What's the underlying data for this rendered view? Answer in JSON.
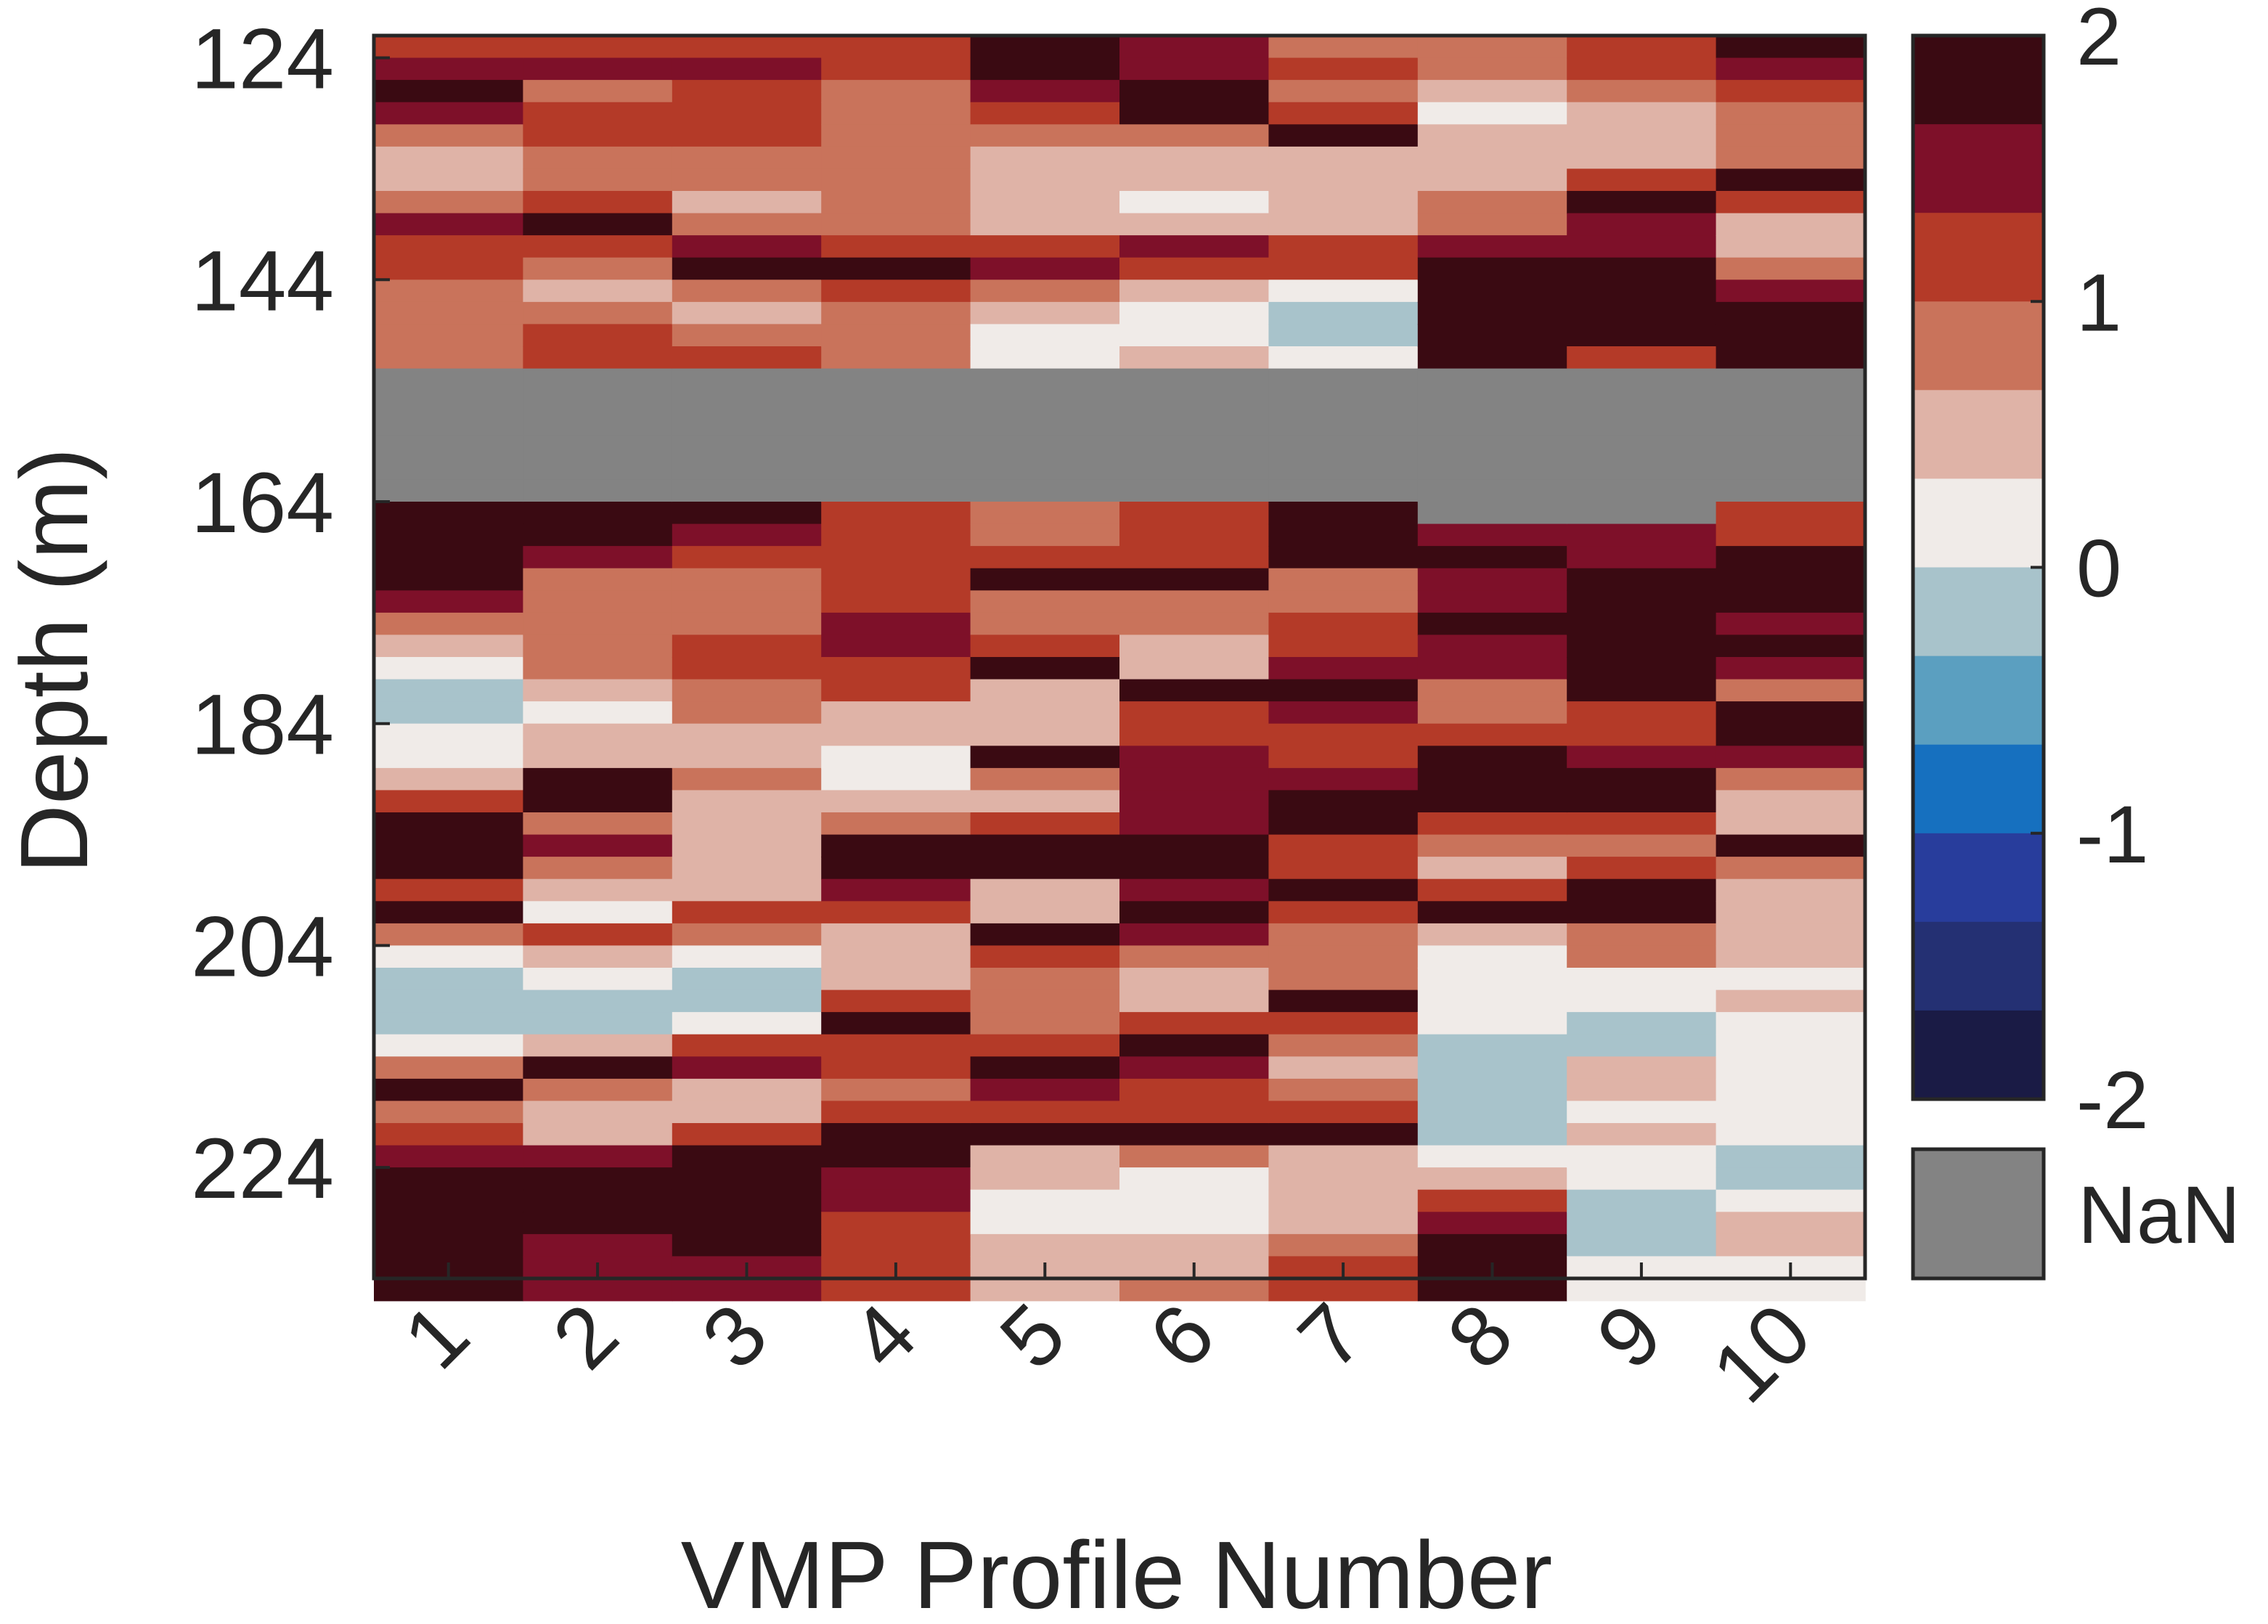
{
  "chart_data": {
    "type": "heatmap",
    "title": "",
    "xlabel": "VMP Profile Number",
    "ylabel": "Depth (m)",
    "x_categories": [
      "1",
      "2",
      "3",
      "4",
      "5",
      "6",
      "7",
      "8",
      "9",
      "10"
    ],
    "y_ticks": [
      124,
      144,
      164,
      184,
      204,
      224
    ],
    "y_range": [
      122,
      234
    ],
    "y_step": 2,
    "depth_start": 122,
    "color_range": [
      -2,
      2
    ],
    "colorbar": {
      "ticks": [
        2,
        1,
        0,
        -1,
        -2
      ],
      "tick_labels": [
        "2",
        "1",
        "0",
        "-1",
        "-2"
      ],
      "nan_label": "NaN",
      "levels": [
        {
          "min": 1.6667,
          "max": 2.0,
          "color": "#3a0a12"
        },
        {
          "min": 1.3333,
          "max": 1.6667,
          "color": "#7e1029"
        },
        {
          "min": 1.0,
          "max": 1.3333,
          "color": "#b43a28"
        },
        {
          "min": 0.6667,
          "max": 1.0,
          "color": "#c9735b"
        },
        {
          "min": 0.3333,
          "max": 0.6667,
          "color": "#dfb3a7"
        },
        {
          "min": 0.0,
          "max": 0.3333,
          "color": "#f0ebe8"
        },
        {
          "min": -0.3333,
          "max": 0.0,
          "color": "#a8c3cb"
        },
        {
          "min": -0.6667,
          "max": -0.3333,
          "color": "#5b9fc0"
        },
        {
          "min": -1.0,
          "max": -0.6667,
          "color": "#1670bf"
        },
        {
          "min": -1.3333,
          "max": -1.0,
          "color": "#283d9c"
        },
        {
          "min": -1.6667,
          "max": -1.3333,
          "color": "#243073"
        },
        {
          "min": -2.0,
          "max": -1.6667,
          "color": "#1a1b45"
        }
      ],
      "nan_color": "#838383"
    },
    "series": [
      {
        "values": [
          1.2,
          1.5,
          1.8,
          1.5,
          0.8,
          0.5,
          0.5,
          0.8,
          1.5,
          1.2,
          1.0,
          0.8,
          0.8,
          0.8,
          0.8,
          null,
          null,
          null,
          null,
          null,
          null,
          1.8,
          1.8,
          1.8,
          1.8,
          1.5,
          0.8,
          0.5,
          0.2,
          -0.2,
          -0.2,
          0.2,
          0.2,
          0.5,
          1.2,
          1.8,
          1.8,
          1.8,
          1.2,
          1.8,
          0.8,
          0.2,
          -0.2,
          -0.2,
          -0.2,
          0.2,
          0.8,
          1.8,
          0.8,
          1.2,
          1.5,
          1.8,
          1.8,
          1.8,
          1.8,
          1.8,
          1.8
        ]
      },
      {
        "values": [
          1.2,
          1.5,
          0.8,
          1.2,
          1.2,
          0.8,
          0.8,
          1.2,
          1.8,
          1.2,
          0.8,
          0.5,
          0.8,
          1.2,
          1.2,
          null,
          null,
          null,
          null,
          null,
          null,
          1.8,
          1.8,
          1.5,
          0.8,
          0.8,
          0.8,
          0.8,
          0.8,
          0.5,
          0.2,
          0.5,
          0.5,
          1.8,
          1.8,
          0.8,
          1.5,
          0.8,
          0.5,
          0.2,
          1.2,
          0.5,
          0.2,
          -0.2,
          -0.2,
          0.5,
          1.8,
          0.8,
          0.5,
          0.5,
          1.5,
          1.8,
          1.8,
          1.8,
          1.5,
          1.5,
          1.5
        ]
      },
      {
        "values": [
          1.2,
          1.5,
          1.2,
          1.2,
          1.2,
          0.8,
          0.8,
          0.5,
          0.8,
          1.5,
          1.8,
          0.8,
          0.5,
          0.8,
          1.2,
          null,
          null,
          null,
          null,
          null,
          null,
          1.8,
          1.5,
          1.2,
          0.8,
          0.8,
          0.8,
          1.2,
          1.2,
          0.8,
          0.8,
          0.5,
          0.5,
          0.8,
          0.5,
          0.5,
          0.5,
          0.5,
          0.5,
          1.2,
          0.8,
          0.2,
          -0.2,
          -0.2,
          0.2,
          1.2,
          1.5,
          0.5,
          0.5,
          1.2,
          1.8,
          1.8,
          1.8,
          1.8,
          1.8,
          1.5,
          1.5
        ]
      },
      {
        "values": [
          1.2,
          1.2,
          0.8,
          0.8,
          0.8,
          0.8,
          0.8,
          0.8,
          0.8,
          1.2,
          1.8,
          1.2,
          0.8,
          0.8,
          0.8,
          null,
          null,
          null,
          null,
          null,
          null,
          1.2,
          1.2,
          1.2,
          1.2,
          1.2,
          1.5,
          1.5,
          1.2,
          1.2,
          0.5,
          0.5,
          0.2,
          0.2,
          0.5,
          0.8,
          1.8,
          1.8,
          1.5,
          1.2,
          0.5,
          0.5,
          0.5,
          1.2,
          1.8,
          1.2,
          1.2,
          0.8,
          1.2,
          1.8,
          1.8,
          1.5,
          1.5,
          1.2,
          1.2,
          1.2,
          1.2
        ]
      },
      {
        "values": [
          1.8,
          1.8,
          1.5,
          1.2,
          0.8,
          0.5,
          0.5,
          0.5,
          0.5,
          1.2,
          1.5,
          0.8,
          0.5,
          0.2,
          0.2,
          null,
          null,
          null,
          null,
          null,
          null,
          0.8,
          0.8,
          1.2,
          1.8,
          0.8,
          0.8,
          1.2,
          1.8,
          0.5,
          0.5,
          0.5,
          1.8,
          0.8,
          0.5,
          1.2,
          1.8,
          1.8,
          0.5,
          0.5,
          1.8,
          1.2,
          0.8,
          0.8,
          0.8,
          1.2,
          1.8,
          1.5,
          1.2,
          1.8,
          0.5,
          0.5,
          0.2,
          0.2,
          0.5,
          0.5,
          0.5
        ]
      },
      {
        "values": [
          1.5,
          1.5,
          1.8,
          1.8,
          0.8,
          0.5,
          0.5,
          0.2,
          0.5,
          1.5,
          1.2,
          0.5,
          0.2,
          0.2,
          0.5,
          null,
          null,
          null,
          null,
          null,
          null,
          1.2,
          1.2,
          1.2,
          1.8,
          0.8,
          0.8,
          0.5,
          0.5,
          1.8,
          1.2,
          1.2,
          1.5,
          1.5,
          1.5,
          1.5,
          1.8,
          1.8,
          1.5,
          1.8,
          1.5,
          0.8,
          0.5,
          0.5,
          1.2,
          1.8,
          1.5,
          1.2,
          1.2,
          1.8,
          0.8,
          0.2,
          0.2,
          0.2,
          0.5,
          0.5,
          0.8
        ]
      },
      {
        "values": [
          0.8,
          1.2,
          0.8,
          1.2,
          1.8,
          0.5,
          0.5,
          0.5,
          0.5,
          1.2,
          1.2,
          0.2,
          -0.2,
          -0.2,
          0.2,
          null,
          null,
          null,
          null,
          null,
          null,
          1.8,
          1.8,
          1.8,
          0.8,
          0.8,
          1.2,
          1.2,
          1.5,
          1.8,
          1.5,
          1.2,
          1.2,
          1.5,
          1.8,
          1.8,
          1.2,
          1.2,
          1.8,
          1.2,
          0.8,
          0.8,
          0.8,
          1.8,
          1.2,
          0.8,
          0.5,
          0.8,
          1.2,
          1.8,
          0.5,
          0.5,
          0.5,
          0.5,
          0.8,
          1.2,
          1.2
        ]
      },
      {
        "values": [
          0.8,
          0.8,
          0.5,
          0.2,
          0.5,
          0.5,
          0.5,
          0.8,
          0.8,
          1.5,
          1.8,
          1.8,
          1.8,
          1.8,
          1.8,
          null,
          null,
          null,
          null,
          null,
          null,
          null,
          1.5,
          1.8,
          1.5,
          1.5,
          1.8,
          1.5,
          1.5,
          0.8,
          0.8,
          1.2,
          1.8,
          1.8,
          1.8,
          1.2,
          0.8,
          0.5,
          1.2,
          1.8,
          0.5,
          0.2,
          0.2,
          0.2,
          0.2,
          -0.2,
          -0.2,
          -0.2,
          -0.2,
          -0.2,
          0.2,
          0.5,
          1.2,
          1.5,
          1.8,
          1.8,
          1.8
        ]
      },
      {
        "values": [
          1.2,
          1.2,
          0.8,
          0.5,
          0.5,
          0.5,
          1.2,
          1.8,
          1.5,
          1.5,
          1.8,
          1.8,
          1.8,
          1.8,
          1.2,
          null,
          null,
          null,
          null,
          null,
          null,
          null,
          1.5,
          1.5,
          1.8,
          1.8,
          1.8,
          1.8,
          1.8,
          1.8,
          1.2,
          1.2,
          1.5,
          1.8,
          1.8,
          1.2,
          0.8,
          1.2,
          1.8,
          1.8,
          0.8,
          0.8,
          0.2,
          0.2,
          -0.2,
          -0.2,
          0.5,
          0.5,
          0.2,
          0.5,
          0.2,
          0.2,
          -0.2,
          -0.2,
          -0.2,
          0.2,
          0.2
        ]
      },
      {
        "values": [
          1.8,
          1.5,
          1.2,
          0.8,
          0.8,
          0.8,
          1.8,
          1.2,
          0.5,
          0.5,
          0.8,
          1.5,
          1.8,
          1.8,
          1.8,
          null,
          null,
          null,
          null,
          null,
          null,
          1.2,
          1.2,
          1.8,
          1.8,
          1.8,
          1.5,
          1.8,
          1.5,
          0.8,
          1.8,
          1.8,
          1.5,
          0.8,
          0.5,
          0.5,
          1.8,
          0.8,
          0.5,
          0.5,
          0.5,
          0.5,
          0.2,
          0.5,
          0.2,
          0.2,
          0.2,
          0.2,
          0.2,
          0.2,
          -0.2,
          -0.2,
          0.2,
          0.5,
          0.5,
          0.2,
          0.2
        ]
      }
    ]
  }
}
